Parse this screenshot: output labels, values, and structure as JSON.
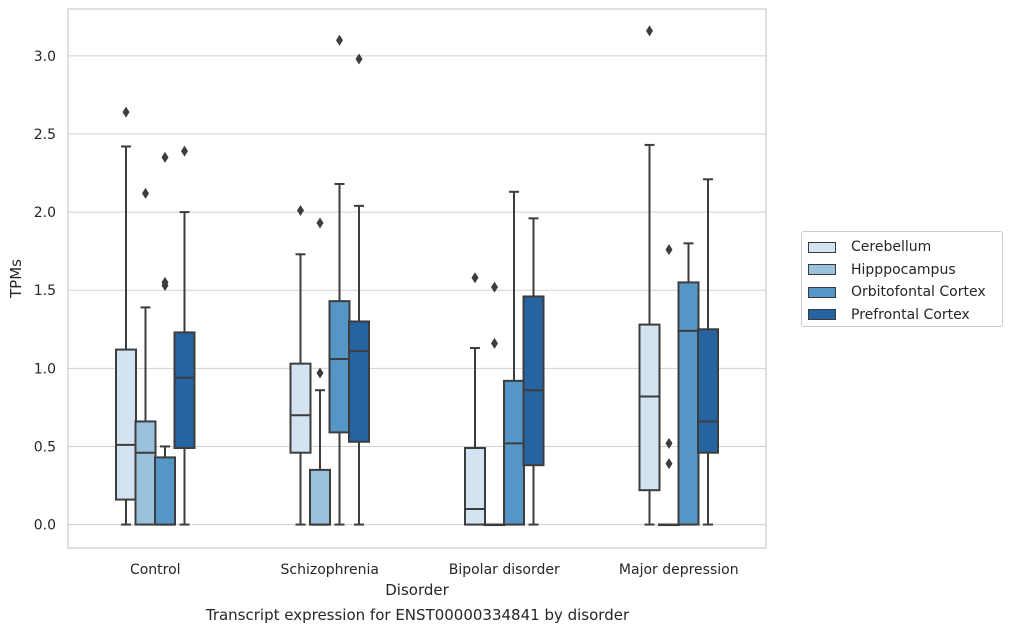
{
  "chart_data": {
    "type": "box",
    "title": "",
    "caption": "Transcript expression for ENST00000334841 by disorder",
    "xlabel": "Disorder",
    "ylabel": "TPMs",
    "ylim": [
      -0.15,
      3.3
    ],
    "yticks": [
      "0.0",
      "0.5",
      "1.0",
      "1.5",
      "2.0",
      "2.5",
      "3.0"
    ],
    "grid": true,
    "legend_position": "right",
    "categories": [
      "Control",
      "Schizophrenia",
      "Bipolar disorder",
      "Major depression"
    ],
    "series": [
      {
        "name": "Cerebellum",
        "color": "#d4e3f2",
        "boxes": [
          {
            "q1": 0.16,
            "median": 0.51,
            "q3": 1.12,
            "whisker_low": 0.0,
            "whisker_high": 2.42,
            "outliers": [
              2.64
            ]
          },
          {
            "q1": 0.46,
            "median": 0.7,
            "q3": 1.03,
            "whisker_low": 0.0,
            "whisker_high": 1.73,
            "outliers": [
              2.01
            ]
          },
          {
            "q1": 0.0,
            "median": 0.1,
            "q3": 0.49,
            "whisker_low": 0.0,
            "whisker_high": 1.13,
            "outliers": [
              1.58
            ]
          },
          {
            "q1": 0.22,
            "median": 0.82,
            "q3": 1.28,
            "whisker_low": 0.0,
            "whisker_high": 2.43,
            "outliers": [
              3.16
            ]
          }
        ]
      },
      {
        "name": "Hipppocampus",
        "color": "#9ac2dd",
        "boxes": [
          {
            "q1": 0.0,
            "median": 0.46,
            "q3": 0.66,
            "whisker_low": 0.0,
            "whisker_high": 1.39,
            "outliers": [
              2.12
            ]
          },
          {
            "q1": 0.0,
            "median": 0.0,
            "q3": 0.35,
            "whisker_low": 0.0,
            "whisker_high": 0.86,
            "outliers": [
              0.97,
              1.93
            ]
          },
          {
            "q1": 0.0,
            "median": 0.0,
            "q3": 0.0,
            "whisker_low": 0.0,
            "whisker_high": 0.0,
            "outliers": [
              1.16,
              1.52
            ]
          },
          {
            "q1": 0.0,
            "median": 0.0,
            "q3": 0.0,
            "whisker_low": 0.0,
            "whisker_high": 0.0,
            "outliers": [
              0.39,
              0.52,
              1.76
            ]
          }
        ]
      },
      {
        "name": "Orbitofontal Cortex",
        "color": "#5496c5",
        "boxes": [
          {
            "q1": 0.0,
            "median": 0.0,
            "q3": 0.43,
            "whisker_low": 0.0,
            "whisker_high": 0.5,
            "outliers": [
              1.53,
              1.55,
              2.35
            ]
          },
          {
            "q1": 0.59,
            "median": 1.06,
            "q3": 1.43,
            "whisker_low": 0.0,
            "whisker_high": 2.18,
            "outliers": [
              3.1
            ]
          },
          {
            "q1": 0.0,
            "median": 0.52,
            "q3": 0.92,
            "whisker_low": 0.0,
            "whisker_high": 2.13,
            "outliers": []
          },
          {
            "q1": 0.0,
            "median": 1.24,
            "q3": 1.55,
            "whisker_low": 0.0,
            "whisker_high": 1.8,
            "outliers": []
          }
        ]
      },
      {
        "name": "Prefrontal Cortex",
        "color": "#2563a1",
        "boxes": [
          {
            "q1": 0.49,
            "median": 0.94,
            "q3": 1.23,
            "whisker_low": 0.0,
            "whisker_high": 2.0,
            "outliers": [
              2.39
            ]
          },
          {
            "q1": 0.53,
            "median": 1.11,
            "q3": 1.3,
            "whisker_low": 0.0,
            "whisker_high": 2.04,
            "outliers": [
              2.98
            ]
          },
          {
            "q1": 0.38,
            "median": 0.86,
            "q3": 1.46,
            "whisker_low": 0.0,
            "whisker_high": 1.96,
            "outliers": []
          },
          {
            "q1": 0.46,
            "median": 0.66,
            "q3": 1.25,
            "whisker_low": 0.0,
            "whisker_high": 2.21,
            "outliers": []
          }
        ]
      }
    ]
  }
}
